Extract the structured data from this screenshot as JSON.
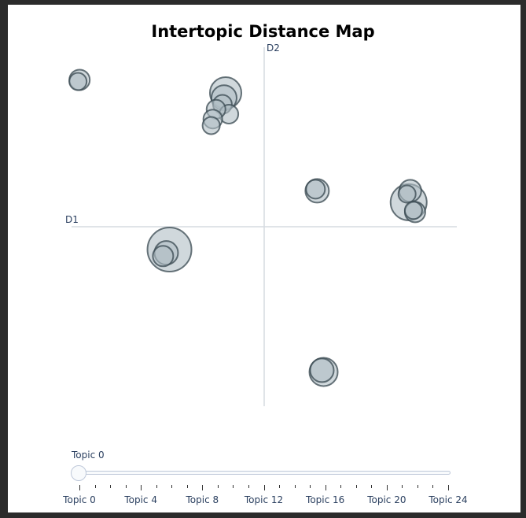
{
  "chart_data": {
    "type": "scatter",
    "title": "Intertopic Distance Map",
    "xlabel": "D1",
    "ylabel": "D2",
    "xlim": [
      -12,
      12
    ],
    "ylim": [
      -11,
      11
    ],
    "grid": false,
    "marker_fill": "#b0bec5",
    "marker_stroke": "#37474f",
    "axis_line_color": "#d6dbe1",
    "points": [
      {
        "x": -11.5,
        "y": 9.0,
        "size": 13
      },
      {
        "x": -11.6,
        "y": 8.9,
        "size": 11
      },
      {
        "x": -2.4,
        "y": 8.2,
        "size": 20
      },
      {
        "x": -2.5,
        "y": 7.9,
        "size": 16
      },
      {
        "x": -2.6,
        "y": 7.5,
        "size": 12
      },
      {
        "x": -2.2,
        "y": 6.9,
        "size": 12
      },
      {
        "x": -3.0,
        "y": 7.2,
        "size": 12
      },
      {
        "x": -3.2,
        "y": 6.6,
        "size": 12
      },
      {
        "x": -3.3,
        "y": 6.2,
        "size": 11
      },
      {
        "x": 3.3,
        "y": 2.2,
        "size": 15
      },
      {
        "x": 3.2,
        "y": 2.3,
        "size": 12
      },
      {
        "x": 9.0,
        "y": 1.5,
        "size": 23
      },
      {
        "x": 9.1,
        "y": 2.2,
        "size": 14
      },
      {
        "x": 8.9,
        "y": 2.0,
        "size": 11
      },
      {
        "x": 9.4,
        "y": 0.9,
        "size": 13
      },
      {
        "x": 9.3,
        "y": 1.0,
        "size": 11
      },
      {
        "x": -5.9,
        "y": -1.4,
        "size": 28
      },
      {
        "x": -6.1,
        "y": -1.6,
        "size": 15
      },
      {
        "x": -6.3,
        "y": -1.8,
        "size": 13
      },
      {
        "x": 3.7,
        "y": -8.9,
        "size": 18
      },
      {
        "x": 3.6,
        "y": -8.8,
        "size": 15
      }
    ]
  },
  "slider": {
    "current_label": "Topic 0",
    "min": 0,
    "max": 24,
    "value": 0,
    "tick_labels": [
      "Topic 0",
      "Topic 4",
      "Topic 8",
      "Topic 12",
      "Topic 16",
      "Topic 20",
      "Topic 24"
    ]
  }
}
